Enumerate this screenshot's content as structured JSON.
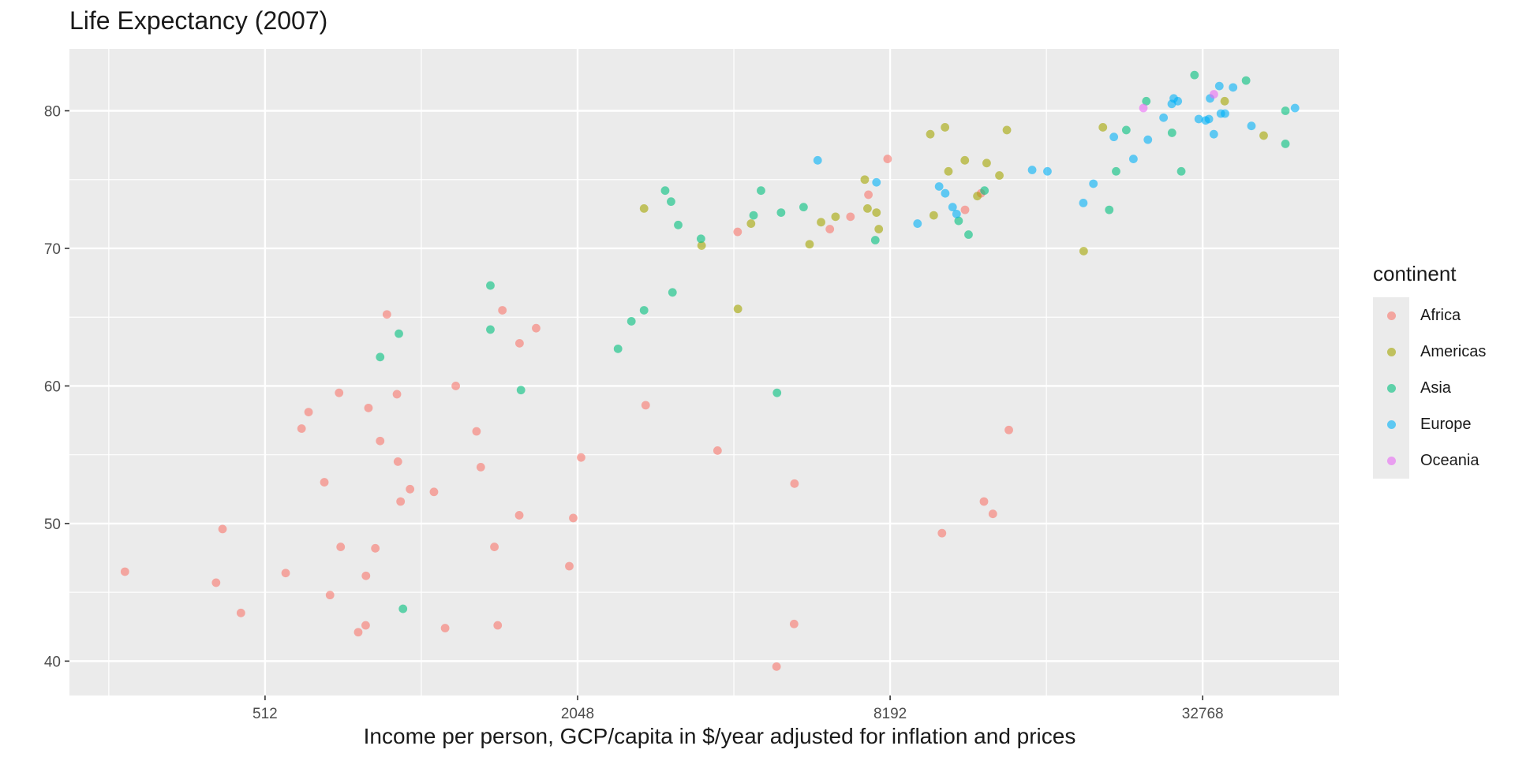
{
  "chart_data": {
    "type": "scatter",
    "title": "Life Expectancy (2007)",
    "xlabel": "Income per person, GCP/capita in $/year adjusted for inflation and prices",
    "ylabel": "",
    "x_scale": "log2",
    "xlim": [
      215,
      60000
    ],
    "ylim": [
      37.5,
      84.5
    ],
    "x_ticks": [
      512,
      2048,
      8192,
      32768
    ],
    "x_tick_labels": [
      "512",
      "2048",
      "8192",
      "32768"
    ],
    "y_ticks": [
      40,
      50,
      60,
      70,
      80
    ],
    "y_tick_labels": [
      "40",
      "50",
      "60",
      "70",
      "80"
    ],
    "grid": true,
    "legend": {
      "title": "continent",
      "placement": "right"
    },
    "colors": {
      "Africa": "#F8766D",
      "Americas": "#A3A500",
      "Asia": "#00BF7D",
      "Europe": "#00B0F6",
      "Oceania": "#E76BF3"
    },
    "series": [
      {
        "name": "Africa",
        "points": [
          [
            275,
            46.5
          ],
          [
            412,
            45.7
          ],
          [
            424,
            49.6
          ],
          [
            460,
            43.5
          ],
          [
            561,
            46.4
          ],
          [
            602,
            56.9
          ],
          [
            621,
            58.1
          ],
          [
            666,
            53.0
          ],
          [
            683,
            44.8
          ],
          [
            711,
            59.5
          ],
          [
            716,
            48.3
          ],
          [
            774,
            42.1
          ],
          [
            800,
            42.6
          ],
          [
            801,
            46.2
          ],
          [
            810,
            58.4
          ],
          [
            835,
            48.2
          ],
          [
            853,
            56.0
          ],
          [
            879,
            65.2
          ],
          [
            919,
            59.4
          ],
          [
            923,
            54.5
          ],
          [
            934,
            51.6
          ],
          [
            974,
            52.5
          ],
          [
            1083,
            52.3
          ],
          [
            1138,
            42.4
          ],
          [
            1193,
            60.0
          ],
          [
            1308,
            56.7
          ],
          [
            1333,
            54.1
          ],
          [
            1416,
            48.3
          ],
          [
            1437,
            42.6
          ],
          [
            1467,
            65.5
          ],
          [
            1583,
            63.1
          ],
          [
            1581,
            50.6
          ],
          [
            1704,
            64.2
          ],
          [
            1974,
            46.9
          ],
          [
            2009,
            50.4
          ],
          [
            2080,
            54.8
          ],
          [
            2770,
            58.6
          ],
          [
            3810,
            55.3
          ],
          [
            4165,
            71.2
          ],
          [
            4950,
            39.6
          ],
          [
            5360,
            52.9
          ],
          [
            5350,
            42.7
          ],
          [
            6270,
            71.4
          ],
          [
            6870,
            72.3
          ],
          [
            7440,
            73.9
          ],
          [
            8100,
            76.5
          ],
          [
            10310,
            49.3
          ],
          [
            11420,
            72.8
          ],
          [
            12260,
            74.0
          ],
          [
            12420,
            51.6
          ],
          [
            12920,
            50.7
          ],
          [
            13870,
            56.8
          ]
        ]
      },
      {
        "name": "Americas",
        "points": [
          [
            2750,
            72.9
          ],
          [
            3550,
            70.2
          ],
          [
            4170,
            65.6
          ],
          [
            4420,
            71.8
          ],
          [
            5730,
            70.3
          ],
          [
            6030,
            71.9
          ],
          [
            6430,
            72.3
          ],
          [
            7320,
            75.0
          ],
          [
            7410,
            72.9
          ],
          [
            7710,
            72.6
          ],
          [
            7790,
            71.4
          ],
          [
            9790,
            78.3
          ],
          [
            9940,
            72.4
          ],
          [
            10450,
            78.8
          ],
          [
            10610,
            75.6
          ],
          [
            11410,
            76.4
          ],
          [
            12060,
            73.8
          ],
          [
            12570,
            76.2
          ],
          [
            13300,
            75.3
          ],
          [
            13750,
            78.6
          ],
          [
            19330,
            69.8
          ],
          [
            21050,
            78.8
          ],
          [
            36130,
            80.7
          ],
          [
            42950,
            78.2
          ]
        ]
      },
      {
        "name": "Asia",
        "points": [
          [
            853,
            62.1
          ],
          [
            927,
            63.8
          ],
          [
            944,
            43.8
          ],
          [
            1391,
            64.1
          ],
          [
            1593,
            59.7
          ],
          [
            1391,
            67.3
          ],
          [
            2450,
            62.7
          ],
          [
            2600,
            64.7
          ],
          [
            2750,
            65.5
          ],
          [
            3020,
            74.2
          ],
          [
            3200,
            71.7
          ],
          [
            3100,
            73.4
          ],
          [
            3120,
            66.8
          ],
          [
            3540,
            70.7
          ],
          [
            4470,
            72.4
          ],
          [
            4620,
            74.2
          ],
          [
            4960,
            59.5
          ],
          [
            5050,
            72.6
          ],
          [
            5580,
            73.0
          ],
          [
            7670,
            70.6
          ],
          [
            11600,
            71.0
          ],
          [
            12450,
            74.2
          ],
          [
            11100,
            72.0
          ],
          [
            21650,
            72.8
          ],
          [
            22320,
            75.6
          ],
          [
            23350,
            78.6
          ],
          [
            25520,
            80.7
          ],
          [
            28600,
            78.4
          ],
          [
            29800,
            75.6
          ],
          [
            31600,
            82.6
          ],
          [
            39720,
            82.2
          ],
          [
            47300,
            80.0
          ],
          [
            47300,
            77.6
          ]
        ]
      },
      {
        "name": "Europe",
        "points": [
          [
            5940,
            76.4
          ],
          [
            7710,
            74.8
          ],
          [
            9250,
            71.8
          ],
          [
            10180,
            74.5
          ],
          [
            10460,
            74.0
          ],
          [
            10808,
            73.0
          ],
          [
            11000,
            72.5
          ],
          [
            15380,
            75.7
          ],
          [
            16460,
            75.6
          ],
          [
            19300,
            73.3
          ],
          [
            20180,
            74.7
          ],
          [
            22100,
            78.1
          ],
          [
            24100,
            76.5
          ],
          [
            25700,
            77.9
          ],
          [
            27550,
            79.5
          ],
          [
            28570,
            80.5
          ],
          [
            28820,
            80.9
          ],
          [
            29350,
            80.7
          ],
          [
            32200,
            79.4
          ],
          [
            33200,
            79.3
          ],
          [
            33690,
            79.4
          ],
          [
            33860,
            80.9
          ],
          [
            34430,
            78.3
          ],
          [
            35280,
            81.8
          ],
          [
            35520,
            79.8
          ],
          [
            36180,
            79.8
          ],
          [
            37500,
            81.7
          ],
          [
            40680,
            78.9
          ],
          [
            49360,
            80.2
          ]
        ]
      },
      {
        "name": "Oceania",
        "points": [
          [
            25190,
            80.2
          ],
          [
            34440,
            81.2
          ]
        ]
      }
    ]
  }
}
